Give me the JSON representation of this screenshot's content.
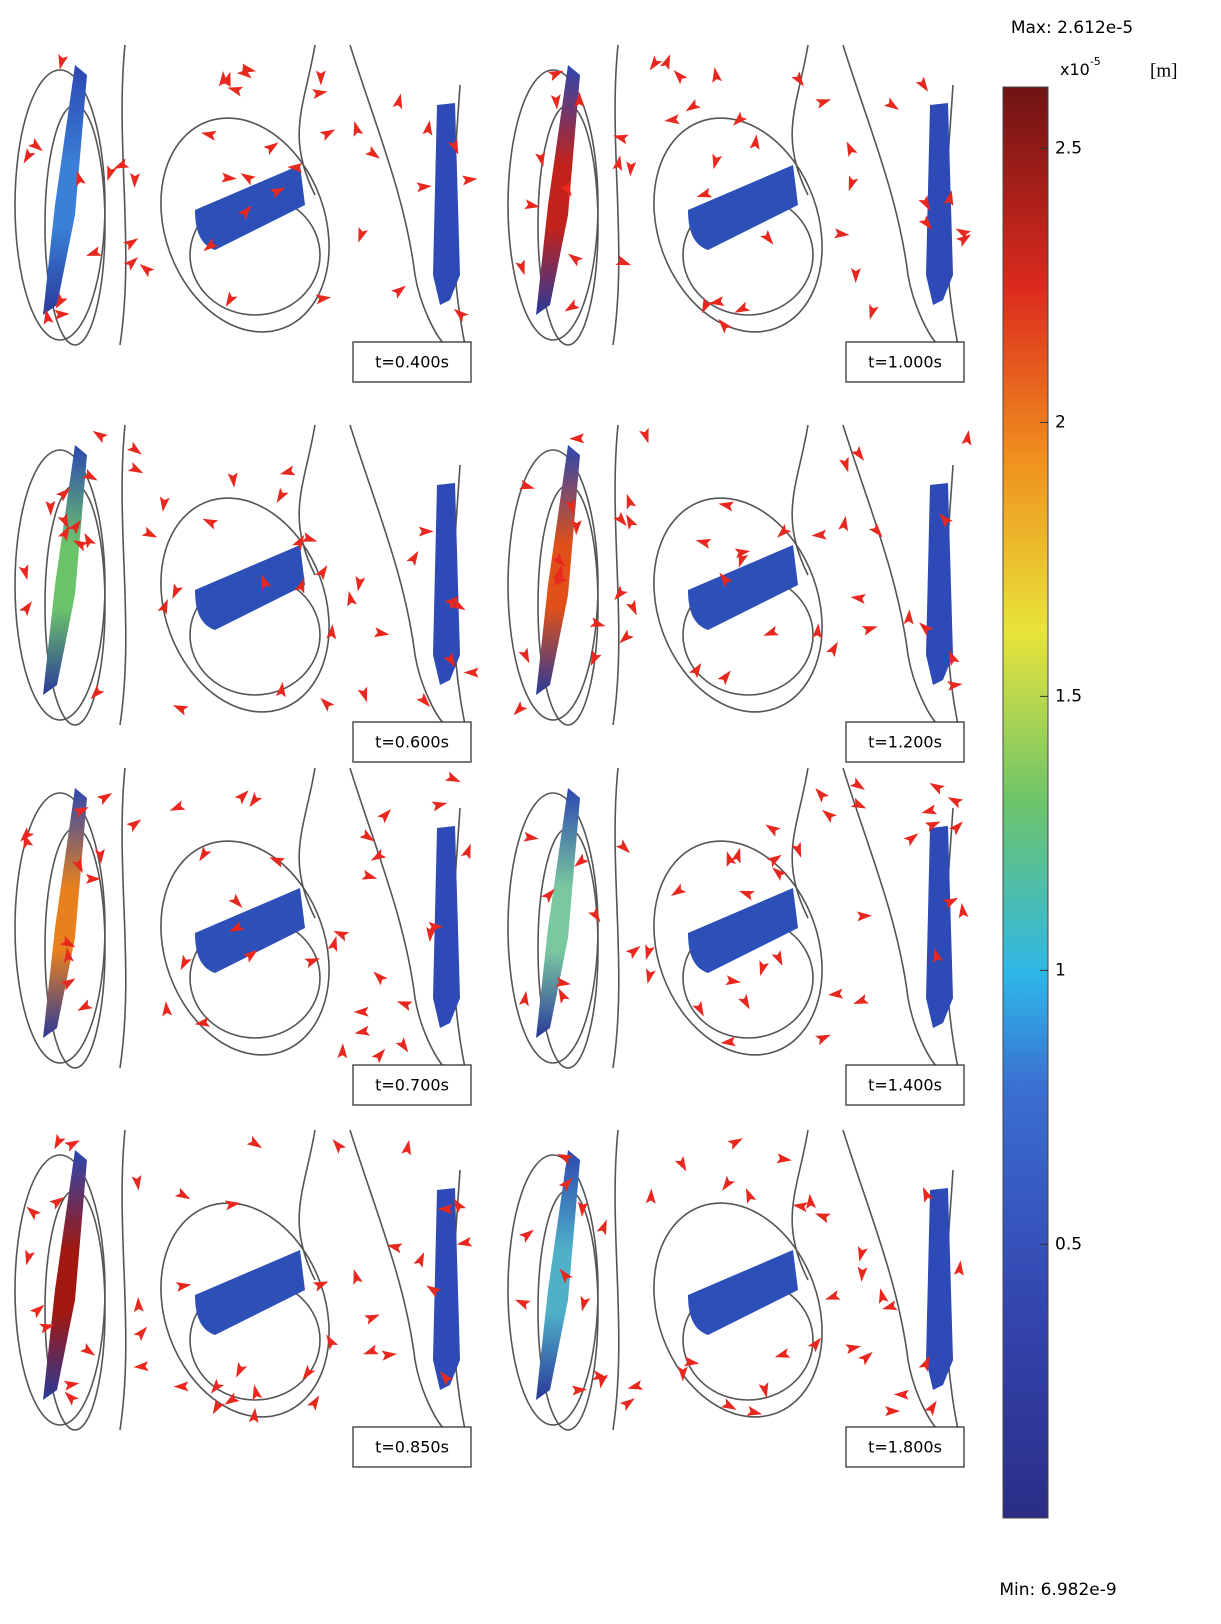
{
  "panels": [
    {
      "label": "t=0.400s"
    },
    {
      "label": "t=1.000s"
    },
    {
      "label": "t=0.600s"
    },
    {
      "label": "t=1.200s"
    },
    {
      "label": "t=0.700s"
    },
    {
      "label": "t=1.400s"
    },
    {
      "label": "t=0.850s"
    },
    {
      "label": "t=1.800s"
    }
  ],
  "colorbar": {
    "max_label": "Max: 2.612e-5",
    "min_label": "Min: 6.982e-9",
    "multiplier": "x10",
    "exponent": "-5",
    "unit": "[m]",
    "lim": [
      0.0006982,
      2.612
    ],
    "ticks": [
      0.5,
      1,
      1.5,
      2,
      2.5
    ]
  }
}
